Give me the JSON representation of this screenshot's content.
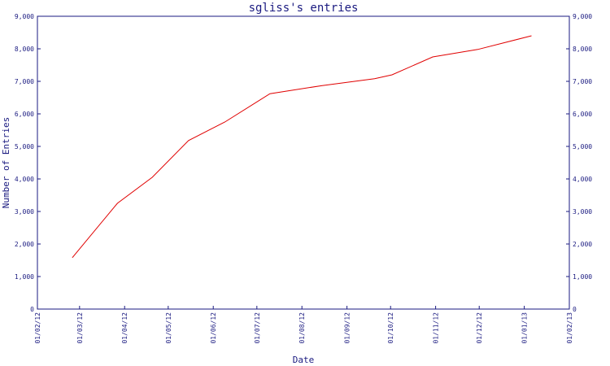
{
  "chart_data": {
    "type": "line",
    "title": "sgliss's entries",
    "xlabel": "Date",
    "ylabel": "Number of Entries",
    "x_tick_labels": [
      "01/02/12",
      "01/03/12",
      "01/04/12",
      "01/05/12",
      "01/06/12",
      "01/07/12",
      "01/08/12",
      "01/09/12",
      "01/10/12",
      "01/11/12",
      "01/12/12",
      "01/01/13",
      "01/02/13"
    ],
    "y_tick_labels": [
      "0",
      "1,000",
      "2,000",
      "3,000",
      "4,000",
      "5,000",
      "6,000",
      "7,000",
      "8,000",
      "9,000"
    ],
    "ylim": [
      0,
      9000
    ],
    "grid": false,
    "series": [
      {
        "color": "#e00000",
        "points": [
          {
            "x": "2012-02-25",
            "y": 1580
          },
          {
            "x": "2012-03-27",
            "y": 3250
          },
          {
            "x": "2012-04-20",
            "y": 4050
          },
          {
            "x": "2012-05-15",
            "y": 5180
          },
          {
            "x": "2012-06-09",
            "y": 5750
          },
          {
            "x": "2012-07-10",
            "y": 6620
          },
          {
            "x": "2012-08-15",
            "y": 6870
          },
          {
            "x": "2012-09-20",
            "y": 7080
          },
          {
            "x": "2012-10-02",
            "y": 7200
          },
          {
            "x": "2012-10-30",
            "y": 7750
          },
          {
            "x": "2012-11-30",
            "y": 7980
          },
          {
            "x": "2013-01-06",
            "y": 8400
          }
        ]
      }
    ]
  }
}
